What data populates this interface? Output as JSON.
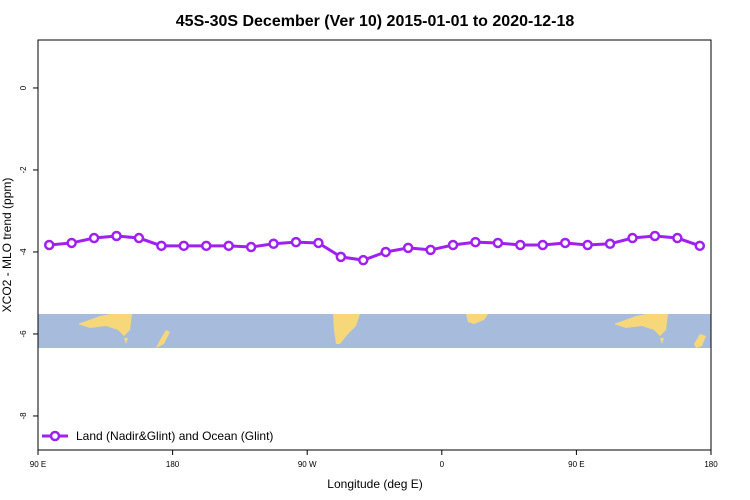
{
  "chart_data": {
    "type": "line",
    "title": "45S-30S December (Ver 10)   2015-01-01 to 2020-12-18",
    "x_label": "Longitude (deg E)",
    "y_label": "XCO2 - MLO trend (ppm)",
    "x": [
      97.5,
      112.5,
      127.5,
      142.5,
      157.5,
      172.5,
      187.5,
      202.5,
      217.5,
      232.5,
      247.5,
      262.5,
      277.5,
      292.5,
      307.5,
      322.5,
      337.5,
      352.5,
      367.5,
      382.5,
      397.5,
      412.5,
      427.5,
      442.5,
      457.5,
      472.5,
      487.5,
      502.5,
      517.5,
      532.5
    ],
    "series": [
      {
        "name": "Land (Nadir&Glint) and Ocean (Glint)",
        "color": "#a020f0",
        "values": [
          -3.83,
          -3.78,
          -3.66,
          -3.61,
          -3.66,
          -3.85,
          -3.85,
          -3.85,
          -3.85,
          -3.88,
          -3.8,
          -3.76,
          -3.78,
          -4.12,
          -4.2,
          -4.0,
          -3.9,
          -3.95,
          -3.83,
          -3.76,
          -3.78,
          -3.83,
          -3.83,
          -3.78,
          -3.83,
          -3.8,
          -3.66,
          -3.61,
          -3.66,
          -3.85
        ]
      }
    ],
    "xlim": [
      90,
      540
    ],
    "xticks": [
      {
        "value": 90,
        "label": "90 E"
      },
      180,
      {
        "value": 270,
        "label": "90 W"
      },
      {
        "value": 360,
        "label": "0"
      },
      {
        "value": 450,
        "label": "90 E"
      },
      {
        "value": 540,
        "label": "180"
      }
    ],
    "ylim": [
      -8.83,
      1.17
    ],
    "yticks": [
      0,
      -2,
      -4,
      -6,
      -8
    ],
    "legend": "bottom-left"
  }
}
